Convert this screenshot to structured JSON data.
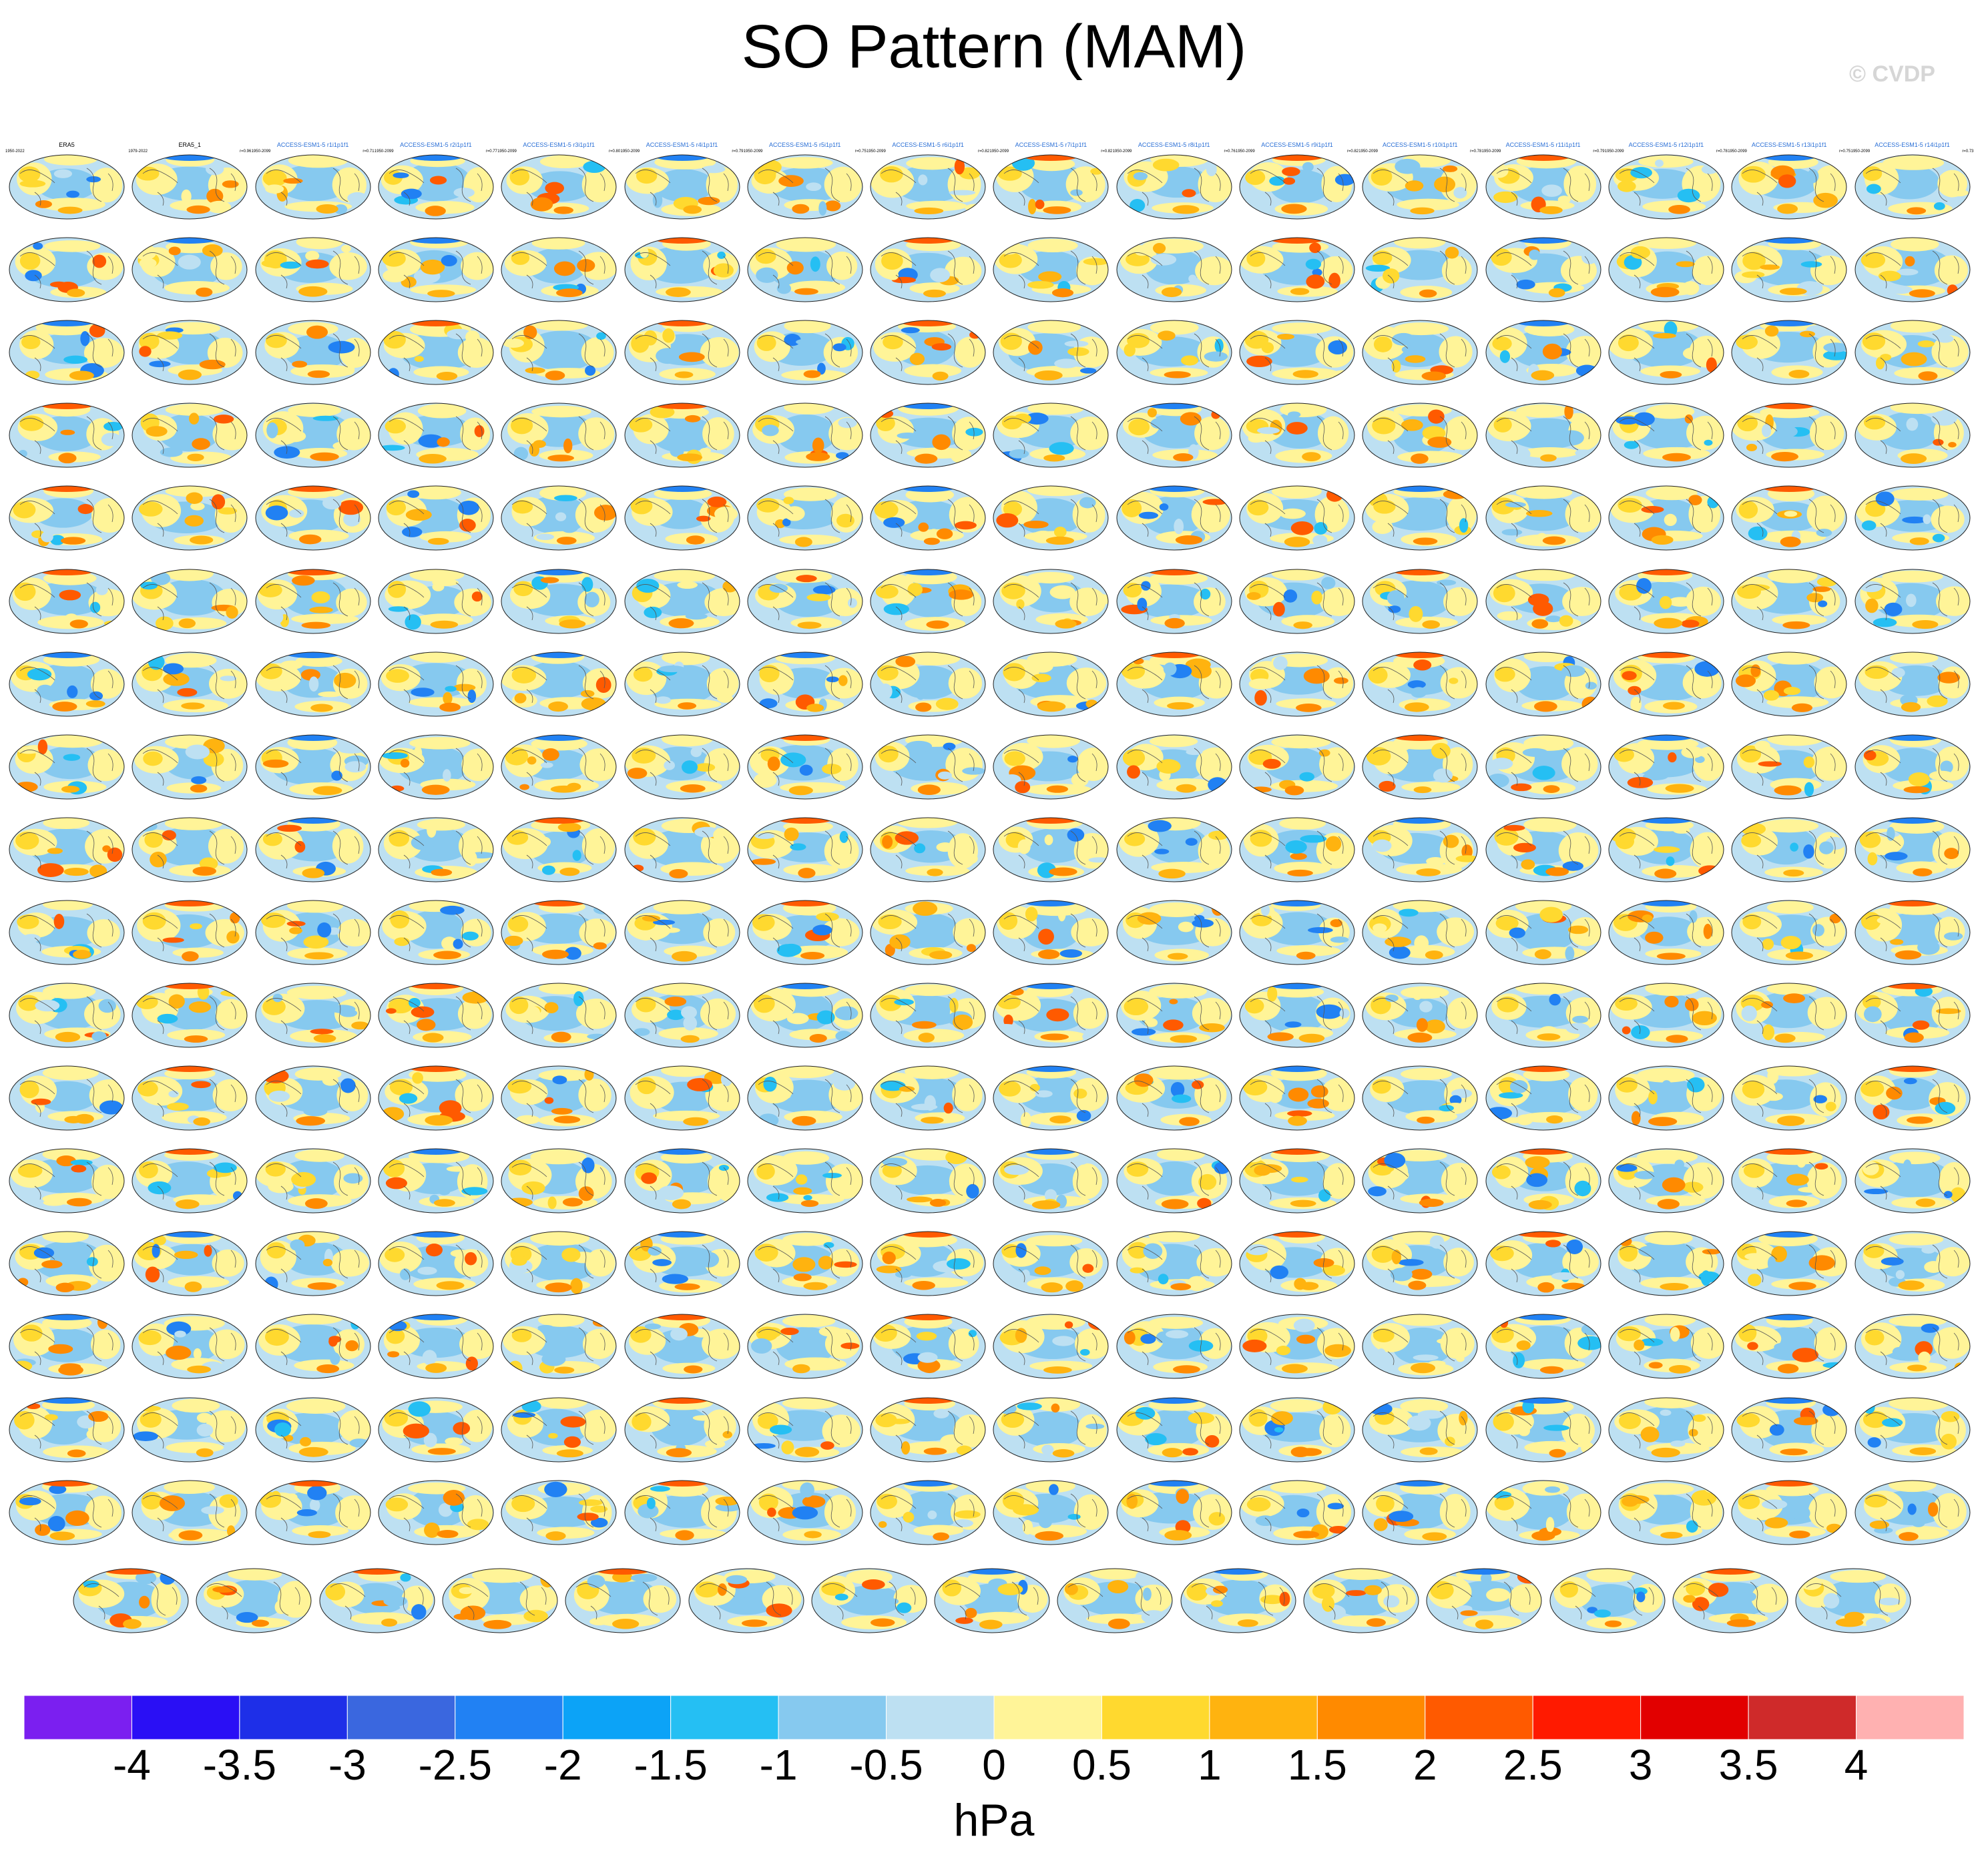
{
  "title": "SO Pattern (MAM)",
  "watermark": "© CVDP",
  "chart_data": {
    "type": "heatmap",
    "title": "SO Pattern (MAM)",
    "layout": "small-multiples grid of global map panels (17 rows x 16 columns, plus a final centered row of 15 panels)",
    "panel_count": 287,
    "colorbar": {
      "label": "hPa",
      "levels": [
        -4,
        -3.5,
        -3,
        -2.5,
        -2,
        -1.5,
        -1,
        -0.5,
        0,
        0.5,
        1,
        1.5,
        2,
        2.5,
        3,
        3.5,
        4
      ],
      "tick_labels": [
        "-4",
        "-3.5",
        "-3",
        "-2.5",
        "-2",
        "-1.5",
        "-1",
        "-0.5",
        "0",
        "0.5",
        "1",
        "1.5",
        "2",
        "2.5",
        "3",
        "3.5",
        "4"
      ],
      "colors": [
        "#7b1ff0",
        "#2a0ff5",
        "#1e2fe8",
        "#3a67df",
        "#2181f3",
        "#0ca3f7",
        "#25bff3",
        "#86c9ef",
        "#bde0f2",
        "#fff498",
        "#ffd92f",
        "#ffb30f",
        "#ff8a00",
        "#ff5a00",
        "#ff1a00",
        "#e20000",
        "#cf2a2a",
        "#ffb1b1"
      ],
      "orientation": "horizontal",
      "placement": "bottom"
    }
  },
  "panel_labels": {
    "first_row_titles": [
      "ERA5",
      "ERA5_1",
      "ACCESS-ESM1-5 r1i1p1f1",
      "ACCESS-ESM1-5 r2i1p1f1",
      "ACCESS-ESM1-5 r3i1p1f1",
      "ACCESS-ESM1-5 r4i1p1f1",
      "ACCESS-ESM1-5 r5i1p1f1",
      "ACCESS-ESM1-5 r6i1p1f1",
      "ACCESS-ESM1-5 r7i1p1f1",
      "ACCESS-ESM1-5 r8i1p1f1",
      "ACCESS-ESM1-5 r9i1p1f1",
      "ACCESS-ESM1-5 r10i1p1f1",
      "ACCESS-ESM1-5 r11i1p1f1",
      "ACCESS-ESM1-5 r12i1p1f1",
      "ACCESS-ESM1-5 r13i1p1f1",
      "ACCESS-ESM1-5 r14i1p1f1"
    ],
    "first_row_years": [
      "1950-2022",
      "1979-2022",
      "1950-2099",
      "1950-2099",
      "1950-2099",
      "1950-2099",
      "1950-2099",
      "1950-2099",
      "1950-2099",
      "1950-2099",
      "1950-2099",
      "1950-2099",
      "1950-2099",
      "1950-2099",
      "1950-2099",
      "1950-2099"
    ],
    "first_row_correlations": [
      "",
      "r=0.96",
      "r=0.71",
      "r=0.77",
      "r=0.80",
      "r=0.79",
      "r=0.75",
      "r=0.82",
      "r=0.82",
      "r=0.76",
      "r=0.82",
      "r=0.78",
      "r=0.79",
      "r=0.78",
      "r=0.75",
      "r=0.73"
    ]
  }
}
